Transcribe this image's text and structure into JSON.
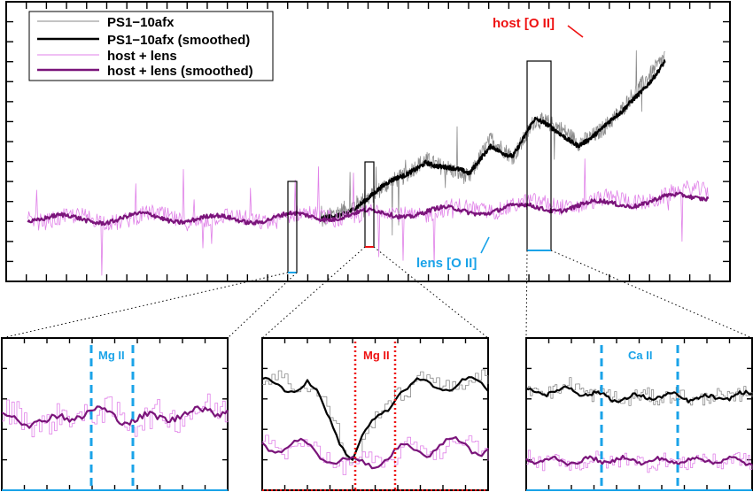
{
  "chart_data": [
    {
      "type": "line",
      "panel": "main",
      "legend_position": "top-left",
      "grid": false,
      "xlim": [
        0,
        1
      ],
      "ylim": [
        0,
        1
      ],
      "series": [
        {
          "name": "PS1−10afx",
          "color": "#8a8a8a",
          "style": "thin",
          "x": [
            0.435,
            0.46,
            0.49,
            0.52,
            0.55,
            0.58,
            0.61,
            0.64,
            0.67,
            0.7,
            0.73,
            0.76,
            0.79,
            0.82,
            0.85,
            0.88,
            0.91
          ],
          "y": [
            0.2,
            0.24,
            0.3,
            0.34,
            0.36,
            0.44,
            0.42,
            0.36,
            0.5,
            0.46,
            0.58,
            0.54,
            0.5,
            0.55,
            0.6,
            0.7,
            0.82
          ]
        },
        {
          "name": "PS1−10afx (smoothed)",
          "color": "#000000",
          "style": "thick",
          "x": [
            0.435,
            0.46,
            0.49,
            0.52,
            0.55,
            0.58,
            0.61,
            0.64,
            0.67,
            0.7,
            0.73,
            0.76,
            0.79,
            0.82,
            0.85,
            0.88,
            0.91
          ],
          "y": [
            0.21,
            0.24,
            0.29,
            0.33,
            0.37,
            0.44,
            0.41,
            0.37,
            0.49,
            0.46,
            0.57,
            0.53,
            0.5,
            0.54,
            0.59,
            0.69,
            0.8
          ]
        },
        {
          "name": "host + lens",
          "color": "#e080e8",
          "style": "thin",
          "x": [
            0.03,
            0.1,
            0.2,
            0.3,
            0.4,
            0.5,
            0.6,
            0.7,
            0.8,
            0.9,
            0.97
          ],
          "y": [
            0.23,
            0.22,
            0.23,
            0.22,
            0.23,
            0.24,
            0.25,
            0.27,
            0.28,
            0.3,
            0.33
          ]
        },
        {
          "name": "host + lens (smoothed)",
          "color": "#7a147a",
          "style": "thick",
          "x": [
            0.03,
            0.1,
            0.2,
            0.3,
            0.4,
            0.5,
            0.6,
            0.7,
            0.8,
            0.9,
            0.97
          ],
          "y": [
            0.23,
            0.22,
            0.23,
            0.22,
            0.23,
            0.24,
            0.25,
            0.26,
            0.27,
            0.29,
            0.31
          ]
        }
      ],
      "annotations": [
        {
          "text": "host [O II]",
          "color": "#ee1111"
        },
        {
          "text": "lens [O II]",
          "color": "#1aa3e8"
        }
      ]
    },
    {
      "type": "line",
      "panel": "inset-left",
      "annotations": [
        {
          "text": "Mg II",
          "color": "#1aa3e8"
        }
      ],
      "series": [
        {
          "name": "",
          "color": "#e080e8",
          "style": "thin",
          "x": [
            0,
            0.2,
            0.4,
            0.6,
            0.8,
            1
          ],
          "y": [
            0.5,
            0.44,
            0.52,
            0.46,
            0.5,
            0.55
          ]
        },
        {
          "name": "",
          "color": "#7a147a",
          "style": "thick",
          "x": [
            0,
            0.2,
            0.4,
            0.6,
            0.8,
            1
          ],
          "y": [
            0.48,
            0.45,
            0.52,
            0.46,
            0.5,
            0.54
          ]
        }
      ]
    },
    {
      "type": "line",
      "panel": "inset-middle",
      "annotations": [
        {
          "text": "Mg II",
          "color": "#ee1111"
        }
      ],
      "series": [
        {
          "name": "",
          "color": "#8a8a8a",
          "style": "thin",
          "x": [
            0,
            0.2,
            0.4,
            0.6,
            0.8,
            1
          ],
          "y": [
            0.7,
            0.72,
            0.2,
            0.68,
            0.72,
            0.7
          ]
        },
        {
          "name": "",
          "color": "#000000",
          "style": "thick",
          "x": [
            0,
            0.2,
            0.4,
            0.6,
            0.8,
            1
          ],
          "y": [
            0.68,
            0.7,
            0.22,
            0.66,
            0.7,
            0.69
          ]
        },
        {
          "name": "",
          "color": "#e080e8",
          "style": "thin",
          "x": [
            0,
            0.2,
            0.4,
            0.6,
            0.8,
            1
          ],
          "y": [
            0.3,
            0.28,
            0.15,
            0.24,
            0.3,
            0.28
          ]
        },
        {
          "name": "",
          "color": "#7a147a",
          "style": "thick",
          "x": [
            0,
            0.2,
            0.4,
            0.6,
            0.8,
            1
          ],
          "y": [
            0.3,
            0.28,
            0.16,
            0.24,
            0.3,
            0.28
          ]
        }
      ]
    },
    {
      "type": "line",
      "panel": "inset-right",
      "annotations": [
        {
          "text": "Ca II",
          "color": "#1aa3e8"
        }
      ],
      "series": [
        {
          "name": "",
          "color": "#8a8a8a",
          "style": "thin",
          "x": [
            0,
            0.2,
            0.4,
            0.6,
            0.8,
            1
          ],
          "y": [
            0.65,
            0.68,
            0.6,
            0.62,
            0.6,
            0.64
          ]
        },
        {
          "name": "",
          "color": "#000000",
          "style": "thick",
          "x": [
            0,
            0.2,
            0.4,
            0.6,
            0.8,
            1
          ],
          "y": [
            0.64,
            0.66,
            0.6,
            0.62,
            0.6,
            0.63
          ]
        },
        {
          "name": "",
          "color": "#e080e8",
          "style": "thin",
          "x": [
            0,
            0.2,
            0.4,
            0.6,
            0.8,
            1
          ],
          "y": [
            0.2,
            0.18,
            0.2,
            0.18,
            0.2,
            0.19
          ]
        },
        {
          "name": "",
          "color": "#7a147a",
          "style": "thick",
          "x": [
            0,
            0.2,
            0.4,
            0.6,
            0.8,
            1
          ],
          "y": [
            0.2,
            0.19,
            0.2,
            0.19,
            0.2,
            0.19
          ]
        }
      ]
    }
  ]
}
